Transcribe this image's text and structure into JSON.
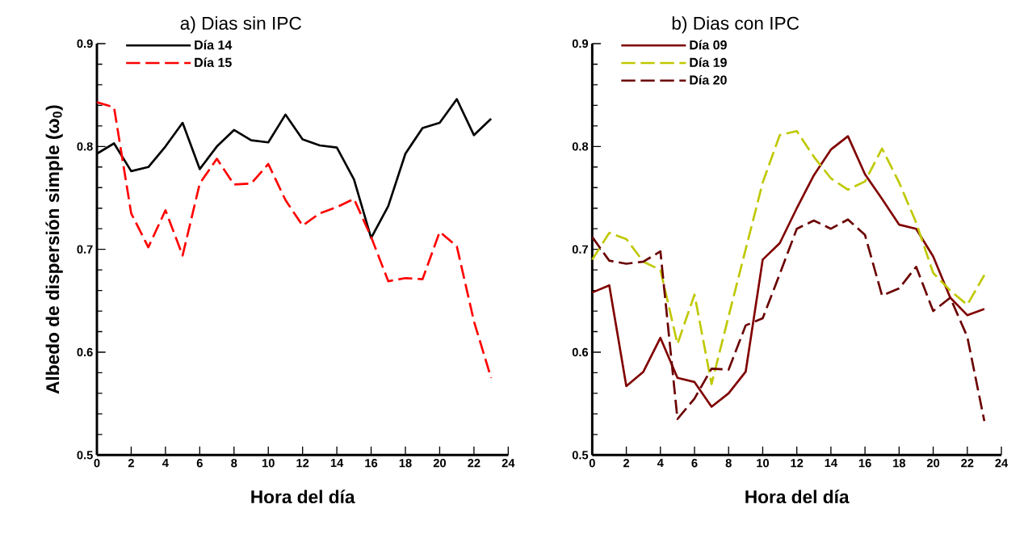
{
  "chart_data": [
    {
      "type": "line",
      "title": "a) Dias sin IPC",
      "xlabel": "Hora del día",
      "ylabel": "Albedo de dispersión simple (ω$_{0}$)",
      "x": [
        0,
        1,
        2,
        3,
        4,
        5,
        6,
        7,
        8,
        9,
        10,
        11,
        12,
        13,
        14,
        15,
        16,
        17,
        18,
        19,
        20,
        21,
        22,
        23
      ],
      "series": [
        {
          "name": "Día 14",
          "color": "#000000",
          "line_style": "solid",
          "values": [
            0.793,
            0.803,
            0.776,
            0.78,
            0.8,
            0.823,
            0.778,
            0.8,
            0.816,
            0.806,
            0.804,
            0.831,
            0.807,
            0.801,
            0.799,
            0.768,
            0.711,
            0.742,
            0.793,
            0.818,
            0.823,
            0.846,
            0.811,
            0.827
          ]
        },
        {
          "name": "Día 15",
          "color": "#ff0000",
          "line_style": "dashed",
          "values": [
            0.843,
            0.838,
            0.735,
            0.702,
            0.738,
            0.694,
            0.764,
            0.788,
            0.763,
            0.764,
            0.783,
            0.748,
            0.723,
            0.735,
            0.741,
            0.749,
            0.712,
            0.669,
            0.672,
            0.671,
            0.717,
            0.703,
            0.63,
            0.575
          ]
        }
      ],
      "xlim": [
        0,
        24
      ],
      "xticks": [
        0,
        2,
        4,
        6,
        8,
        10,
        12,
        14,
        16,
        18,
        20,
        22,
        24
      ],
      "ylim": [
        0.5,
        0.9
      ],
      "yticks": [
        0.5,
        0.6,
        0.7,
        0.8,
        0.9
      ],
      "legend": "top left"
    },
    {
      "type": "line",
      "title": "b) Dias con IPC",
      "xlabel": "Hora del día",
      "x": [
        0,
        1,
        2,
        3,
        4,
        5,
        6,
        7,
        8,
        9,
        10,
        11,
        12,
        13,
        14,
        15,
        16,
        17,
        18,
        19,
        20,
        21,
        22,
        23
      ],
      "series": [
        {
          "name": "Día 09",
          "color": "#800000",
          "line_style": "solid",
          "values": [
            0.658,
            0.665,
            0.567,
            0.581,
            0.614,
            0.575,
            0.571,
            0.547,
            0.56,
            0.581,
            0.69,
            0.706,
            0.74,
            0.772,
            0.797,
            0.81,
            0.773,
            0.749,
            0.724,
            0.72,
            0.693,
            0.653,
            0.636,
            0.642
          ]
        },
        {
          "name": "Día 19",
          "color": "#bfc800",
          "line_style": "dashed",
          "values": [
            0.69,
            0.716,
            0.71,
            0.688,
            0.68,
            0.608,
            0.656,
            0.569,
            0.635,
            0.7,
            0.765,
            0.811,
            0.815,
            0.79,
            0.769,
            0.758,
            0.766,
            0.798,
            0.765,
            0.726,
            0.677,
            0.66,
            0.646,
            0.675
          ]
        },
        {
          "name": "Día 20",
          "color": "#6b0000",
          "line_style": "dashed",
          "values": [
            0.712,
            0.689,
            0.686,
            0.688,
            0.698,
            0.535,
            0.555,
            0.584,
            0.583,
            0.626,
            0.633,
            0.676,
            0.72,
            0.728,
            0.72,
            0.729,
            0.714,
            0.655,
            0.662,
            0.683,
            0.64,
            0.653,
            0.615,
            0.533
          ]
        }
      ],
      "xlim": [
        0,
        24
      ],
      "xticks": [
        0,
        2,
        4,
        6,
        8,
        10,
        12,
        14,
        16,
        18,
        20,
        22,
        24
      ],
      "ylim": [
        0.5,
        0.9
      ],
      "yticks": [
        0.5,
        0.6,
        0.7,
        0.8,
        0.9
      ],
      "legend": "top left"
    }
  ]
}
